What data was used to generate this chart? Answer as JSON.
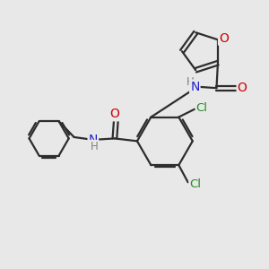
{
  "background_color": "#e8e8e8",
  "bond_color": "#2d2d2d",
  "figsize": [
    3.0,
    3.0
  ],
  "dpi": 100,
  "atom_colors": {
    "O": "#cc0000",
    "N": "#2020cc",
    "Cl": "#228B22",
    "C": "#2d2d2d",
    "H": "#808080"
  }
}
